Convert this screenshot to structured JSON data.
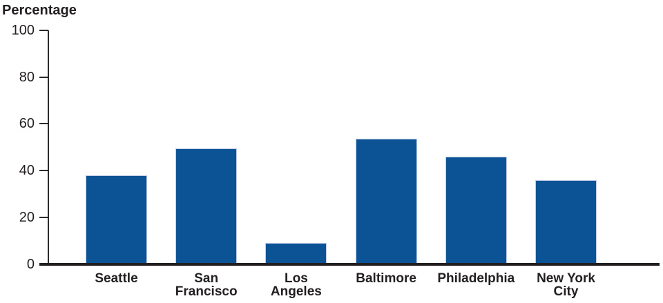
{
  "chart_data": {
    "type": "bar",
    "title": "Percentage",
    "ylabel": "Percentage",
    "xlabel": "",
    "categories": [
      "Seattle",
      "San Francisco",
      "Los Angeles",
      "Baltimore",
      "Philadelphia",
      "New York City"
    ],
    "category_label_lines": [
      [
        "Seattle"
      ],
      [
        "San",
        "Francisco"
      ],
      [
        "Los",
        "Angeles"
      ],
      [
        "Baltimore"
      ],
      [
        "Philadelphia"
      ],
      [
        "New York",
        "City"
      ]
    ],
    "values": [
      38,
      49.5,
      9,
      53.5,
      46,
      36
    ],
    "yticks": [
      0,
      20,
      40,
      60,
      80,
      100
    ],
    "ylim": [
      0,
      100
    ],
    "grid": false,
    "legend": "none",
    "bar_color": "#0b5394",
    "axis_color": "#231f20",
    "text_color": "#231f20",
    "background_color": "#ffffff"
  }
}
